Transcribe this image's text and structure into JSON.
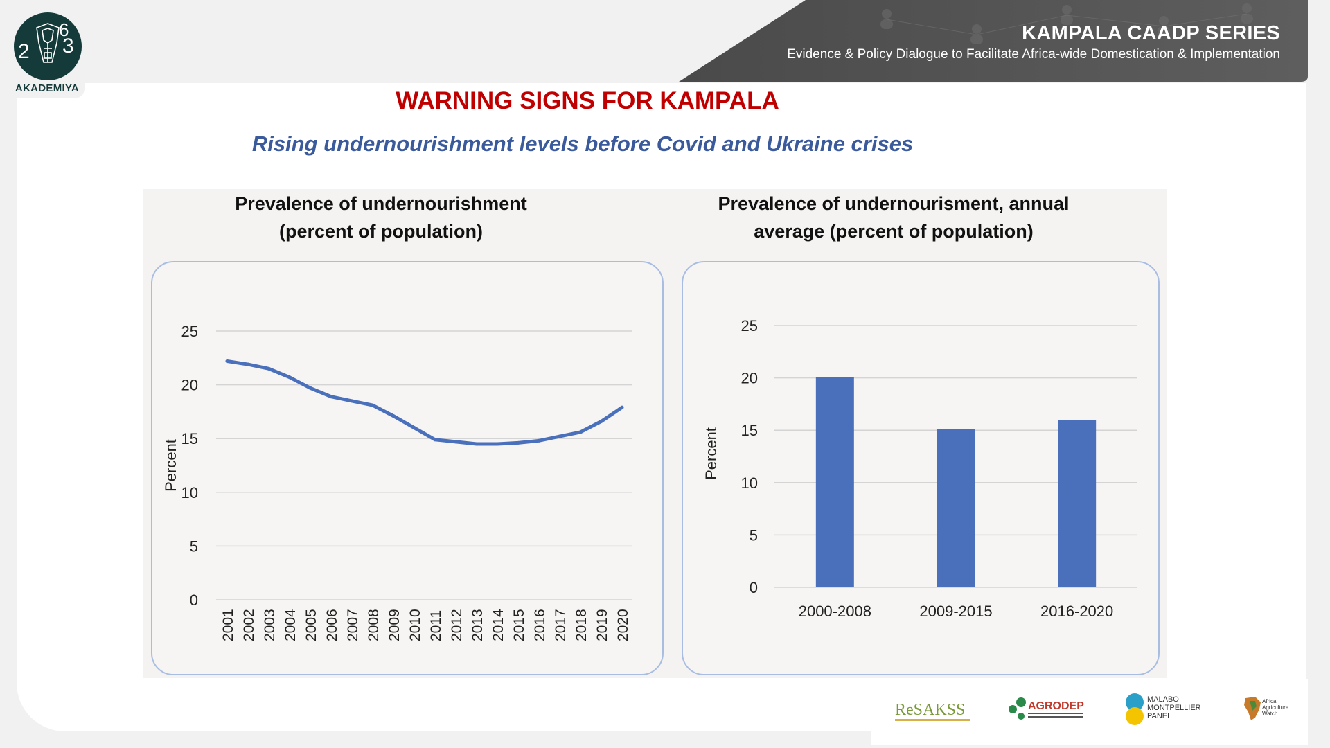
{
  "header": {
    "logo_text": "AKADEMIYA",
    "logo_numbers": [
      "2",
      "0",
      "6",
      "3"
    ],
    "series_title": "KAMPALA CAADP SERIES",
    "series_subtitle": "Evidence & Policy Dialogue to Facilitate Africa-wide Domestication & Implementation"
  },
  "slide": {
    "title": "WARNING SIGNS FOR KAMPALA",
    "subtitle": "Rising undernourishment levels before Covid and Ukraine crises"
  },
  "colors": {
    "title_red": "#c00000",
    "subtitle_blue": "#3a5a9c",
    "series_blue": "#4a70bb",
    "logo_dark": "#143a3a"
  },
  "footer_logos": [
    {
      "name": "resakss",
      "text": "ReSAKSS"
    },
    {
      "name": "agrodep",
      "text": "AGRODEP"
    },
    {
      "name": "malabo",
      "text": "MALABO MONTPELLIER PANEL"
    },
    {
      "name": "aaw",
      "text": "Africa Agriculture Watch"
    }
  ],
  "chart_data": [
    {
      "type": "line",
      "title_line1": "Prevalence of undernourishment",
      "title_line2": "(percent of population)",
      "xlabel": "",
      "ylabel": "Percent",
      "ylim": [
        0,
        25
      ],
      "yticks": [
        0,
        5,
        10,
        15,
        20,
        25
      ],
      "grid": true,
      "x": [
        "2001",
        "2002",
        "2003",
        "2004",
        "2005",
        "2006",
        "2007",
        "2008",
        "2009",
        "2010",
        "2011",
        "2012",
        "2013",
        "2014",
        "2015",
        "2016",
        "2017",
        "2018",
        "2019",
        "2020"
      ],
      "series": [
        {
          "values": [
            22.2,
            21.9,
            21.5,
            20.7,
            19.7,
            18.9,
            18.5,
            18.1,
            17.1,
            16.0,
            14.9,
            14.7,
            14.5,
            14.5,
            14.6,
            14.8,
            15.2,
            15.6,
            16.6,
            17.9
          ]
        }
      ]
    },
    {
      "type": "bar",
      "title_line1": "Prevalence of undernourisment, annual",
      "title_line2": "average (percent of population)",
      "xlabel": "",
      "ylabel": "Percent",
      "ylim": [
        0,
        25
      ],
      "yticks": [
        0,
        5,
        10,
        15,
        20,
        25
      ],
      "grid": true,
      "categories": [
        "2000-2008",
        "2009-2015",
        "2016-2020"
      ],
      "values": [
        20.1,
        15.1,
        16.0
      ]
    }
  ]
}
